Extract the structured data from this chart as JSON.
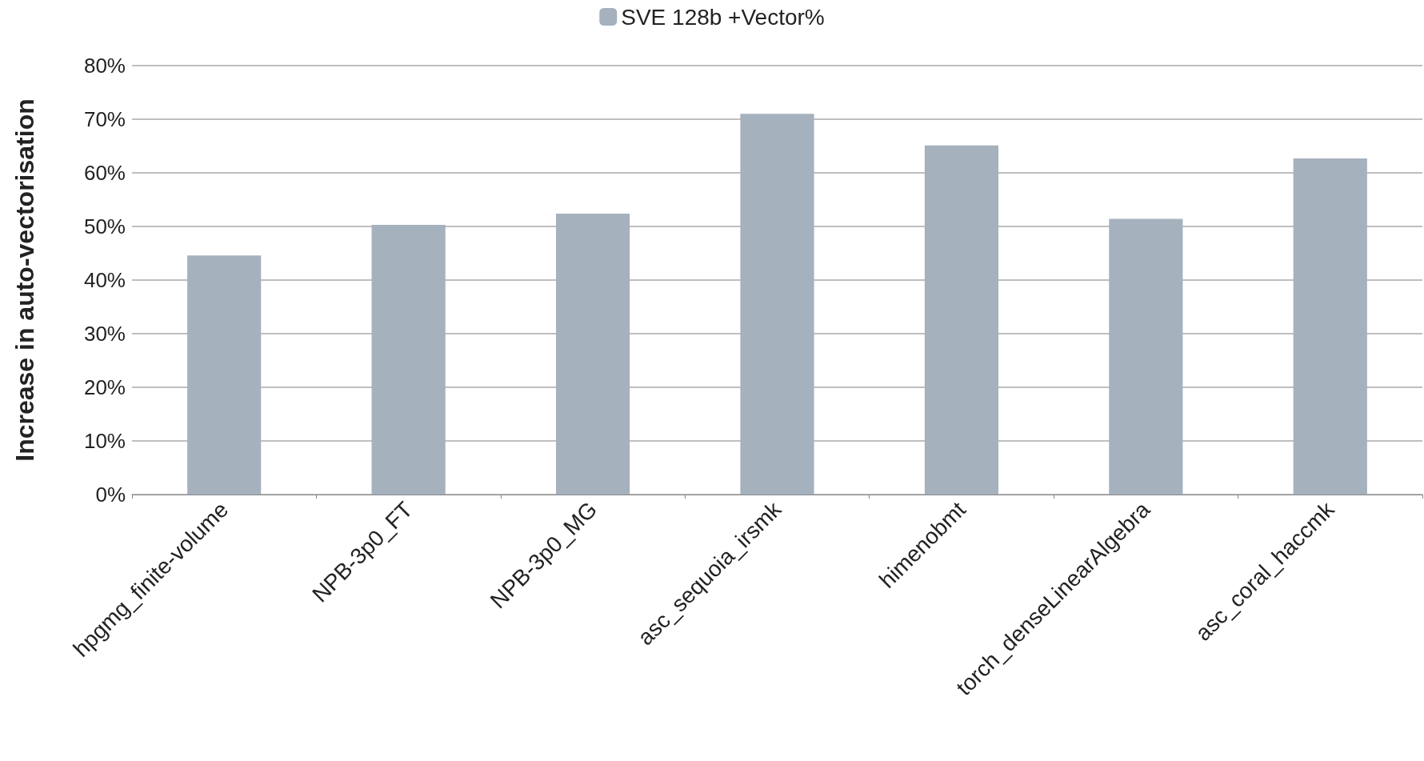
{
  "chart_data": {
    "type": "bar",
    "ylabel": "Increase in auto-vectorisation",
    "categories": [
      "hpgmg_finite-volume",
      "NPB-3p0_FT",
      "NPB-3p0_MG",
      "asc_sequoia_irsmk",
      "himenobmt",
      "torch_denseLinearAlgebra",
      "asc_coral_haccmk"
    ],
    "series": [
      {
        "name": "SVE 128b +Vector%",
        "color": "#a5b1bd",
        "values": [
          44.6,
          50.3,
          52.4,
          71.0,
          65.1,
          51.4,
          62.7
        ]
      }
    ],
    "ylim": [
      0,
      80
    ],
    "yticks": [
      {
        "value": 0,
        "label": "0%"
      },
      {
        "value": 10,
        "label": "10%"
      },
      {
        "value": 20,
        "label": "20%"
      },
      {
        "value": 30,
        "label": "30%"
      },
      {
        "value": 40,
        "label": "40%"
      },
      {
        "value": 50,
        "label": "50%"
      },
      {
        "value": 60,
        "label": "60%"
      },
      {
        "value": 70,
        "label": "70%"
      },
      {
        "value": 80,
        "label": "80%"
      }
    ],
    "grid": "y",
    "legend": "top"
  }
}
